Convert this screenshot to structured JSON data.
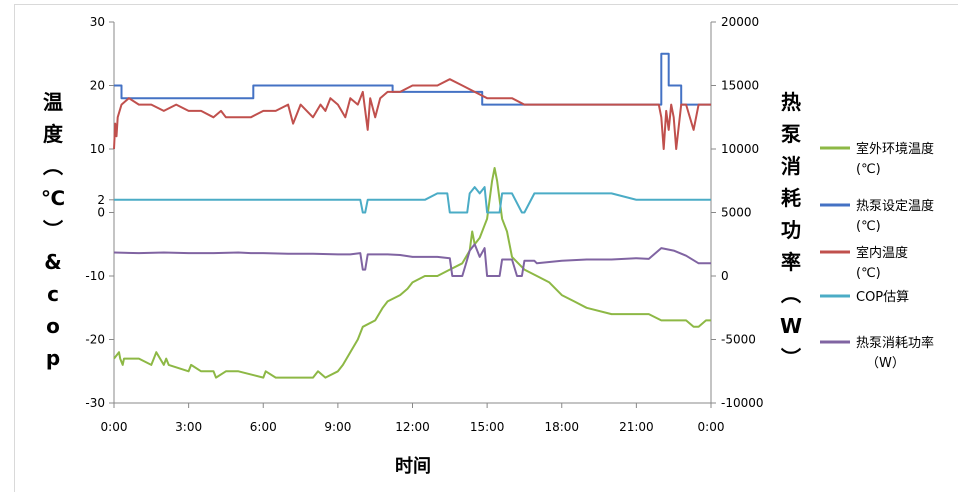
{
  "chart_data": {
    "type": "line",
    "xlabel": "时间",
    "ylabel_left": "温度（℃）&cop",
    "ylabel_right": "热泵消耗功率（W）",
    "x_ticks": [
      "0:00",
      "3:00",
      "6:00",
      "9:00",
      "12:00",
      "15:00",
      "18:00",
      "21:00",
      "0:00"
    ],
    "x_range_hours": [
      0,
      24
    ],
    "y_left_ticks": [
      -30,
      -20,
      -10,
      0,
      2,
      10,
      20,
      30
    ],
    "y_left_range": [
      -30,
      30
    ],
    "y_right_ticks": [
      -10000,
      -5000,
      0,
      5000,
      10000,
      15000,
      20000
    ],
    "y_right_range": [
      -10000,
      20000
    ],
    "grid": false,
    "legend_position": "right",
    "series": [
      {
        "name": "室外环境温度(℃)",
        "axis": "left",
        "color": "#8db845",
        "x": [
          0,
          0.2,
          0.25,
          0.35,
          0.4,
          0.6,
          1,
          1.5,
          1.6,
          1.7,
          2,
          2.1,
          2.2,
          3,
          3.1,
          3.5,
          4,
          4.1,
          4.5,
          5,
          6,
          6.1,
          6.5,
          7,
          7.5,
          8,
          8.2,
          8.5,
          9,
          9.2,
          9.5,
          9.8,
          10,
          10.5,
          10.8,
          11,
          11.5,
          11.8,
          12,
          12.5,
          13,
          13.5,
          14,
          14.3,
          14.4,
          14.5,
          14.7,
          14.9,
          15,
          15.1,
          15.2,
          15.3,
          15.4,
          15.5,
          15.6,
          15.8,
          16,
          16.5,
          17,
          17.5,
          18,
          18.5,
          19,
          20,
          20.5,
          21,
          21.5,
          22,
          22.5,
          23,
          23.3,
          23.5,
          23.8,
          24
        ],
        "y": [
          -23,
          -22,
          -23,
          -24,
          -23,
          -23,
          -23,
          -24,
          -23,
          -22,
          -24,
          -23,
          -24,
          -25,
          -24,
          -25,
          -25,
          -26,
          -25,
          -25,
          -26,
          -25,
          -26,
          -26,
          -26,
          -26,
          -25,
          -26,
          -25,
          -24,
          -22,
          -20,
          -18,
          -17,
          -15,
          -14,
          -13,
          -12,
          -11,
          -10,
          -10,
          -9,
          -8,
          -6,
          -3,
          -5,
          -4,
          -2,
          -1,
          2,
          5,
          7,
          5,
          2,
          -1,
          -3,
          -7,
          -9,
          -10,
          -11,
          -13,
          -14,
          -15,
          -16,
          -16,
          -16,
          -16,
          -17,
          -17,
          -17,
          -18,
          -18,
          -17,
          -17
        ]
      },
      {
        "name": "热泵设定温度(℃)",
        "axis": "left",
        "color": "#4472c4",
        "x": [
          0,
          0.3,
          0.3,
          5.6,
          5.6,
          11.2,
          11.2,
          14.8,
          14.8,
          22.0,
          22.0,
          22.3,
          22.3,
          22.8,
          22.8,
          24
        ],
        "y": [
          20,
          20,
          18,
          18,
          20,
          20,
          19,
          19,
          17,
          17,
          25,
          25,
          20,
          20,
          17,
          17
        ]
      },
      {
        "name": "室内温度(℃)",
        "axis": "left",
        "color": "#c0504d",
        "x": [
          0,
          0.05,
          0.1,
          0.15,
          0.3,
          0.6,
          1,
          1.5,
          2,
          2.5,
          3,
          3.5,
          4,
          4.3,
          4.5,
          5,
          5.5,
          6,
          6.5,
          7,
          7.2,
          7.5,
          8,
          8.3,
          8.5,
          8.7,
          9,
          9.3,
          9.5,
          9.8,
          10,
          10.2,
          10.3,
          10.5,
          10.7,
          11,
          11.5,
          12,
          12.5,
          13,
          13.5,
          14,
          14.5,
          15,
          15.5,
          16,
          16.5,
          17,
          17.5,
          18,
          18.5,
          19,
          20,
          21,
          21.9,
          22.0,
          22.1,
          22.2,
          22.3,
          22.4,
          22.5,
          22.6,
          22.8,
          23,
          23.3,
          23.5,
          23.8,
          24
        ],
        "y": [
          10,
          14,
          12,
          15,
          17,
          18,
          17,
          17,
          16,
          17,
          16,
          16,
          15,
          16,
          15,
          15,
          15,
          16,
          16,
          17,
          14,
          17,
          15,
          17,
          16,
          18,
          17,
          15,
          18,
          17,
          19,
          13,
          18,
          15,
          18,
          19,
          19,
          20,
          20,
          20,
          21,
          20,
          19,
          18,
          18,
          18,
          17,
          17,
          17,
          17,
          17,
          17,
          17,
          17,
          17,
          15,
          10,
          16,
          13,
          17,
          15,
          10,
          17,
          17,
          13,
          17,
          17,
          17
        ]
      },
      {
        "name": "COP估算",
        "axis": "left",
        "color": "#4bacc6",
        "x": [
          0,
          1,
          2,
          3,
          4,
          5,
          6,
          7,
          8,
          9,
          9.9,
          10,
          10.1,
          10.2,
          10.5,
          11,
          11.5,
          12,
          12.5,
          13,
          13.4,
          13.5,
          14.2,
          14.3,
          14.5,
          14.7,
          14.9,
          15,
          15.5,
          15.6,
          15.9,
          16,
          16.4,
          16.5,
          16.9,
          17,
          18,
          19,
          20,
          21,
          22,
          23,
          24
        ],
        "y": [
          2,
          2,
          2,
          2,
          2,
          2,
          2,
          2,
          2,
          2,
          2,
          0,
          0,
          2,
          2,
          2,
          2,
          2,
          2,
          3,
          3,
          0,
          0,
          3,
          4,
          3,
          4,
          0,
          0,
          3,
          3,
          3,
          0,
          0,
          3,
          3,
          3,
          3,
          3,
          2,
          2,
          2,
          2
        ]
      },
      {
        "name": "热泵消耗功率（W）",
        "axis": "right",
        "color": "#8064a2",
        "x": [
          0,
          1,
          2,
          3,
          4,
          5,
          5.5,
          6,
          7,
          8,
          9,
          9.5,
          9.9,
          10,
          10.1,
          10.2,
          10.5,
          11,
          11.5,
          12,
          12.5,
          13,
          13.5,
          13.6,
          14,
          14.2,
          14.3,
          14.5,
          14.7,
          14.9,
          15,
          15.5,
          15.6,
          16,
          16.2,
          16.4,
          16.5,
          16.9,
          17,
          18,
          19,
          20,
          21,
          21.5,
          22,
          22.5,
          23,
          23.5,
          24
        ],
        "y": [
          1850,
          1800,
          1850,
          1800,
          1800,
          1850,
          1800,
          1800,
          1750,
          1750,
          1700,
          1700,
          1800,
          500,
          500,
          1700,
          1700,
          1700,
          1650,
          1500,
          1500,
          1500,
          1400,
          0,
          0,
          1300,
          2000,
          2500,
          1500,
          2200,
          0,
          0,
          1300,
          1300,
          0,
          0,
          1200,
          1200,
          1000,
          1200,
          1300,
          1300,
          1400,
          1350,
          2200,
          2000,
          1600,
          1000,
          1000
        ]
      }
    ]
  }
}
